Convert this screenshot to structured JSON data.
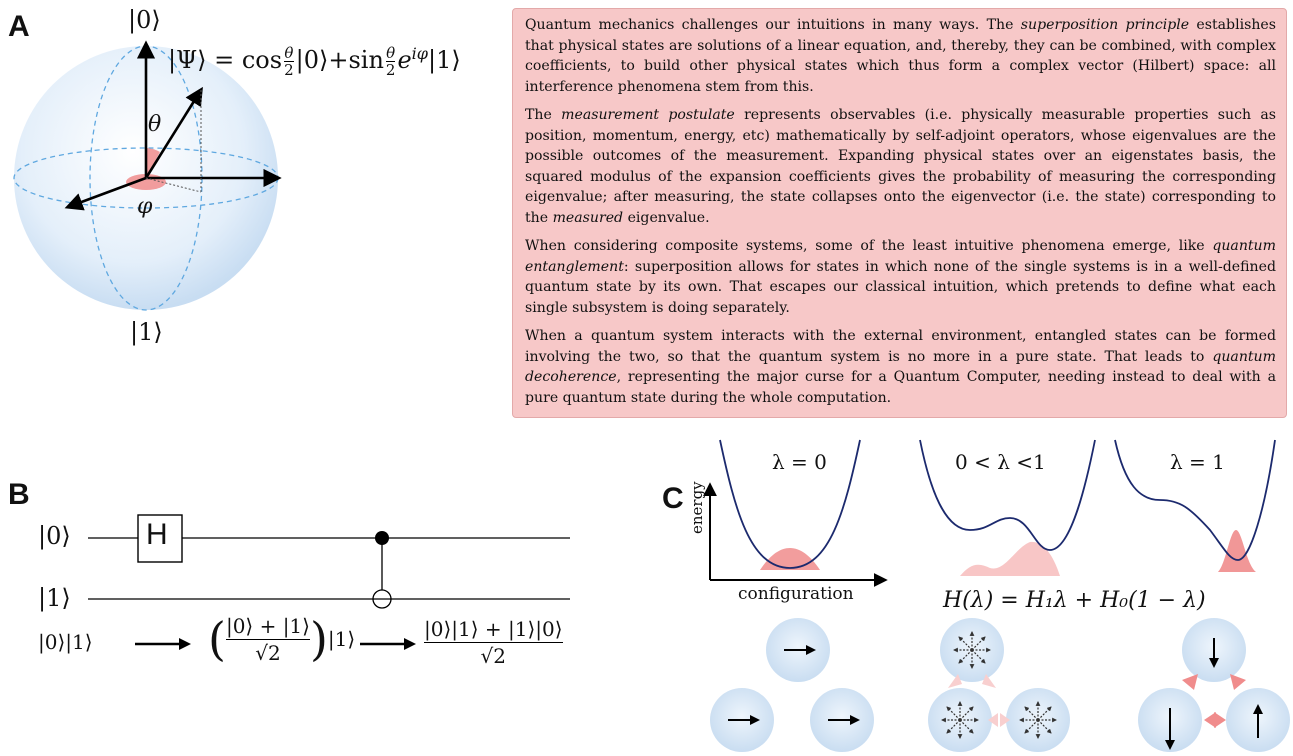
{
  "panel_a": {
    "letter": "A",
    "ket0": "|0⟩",
    "ket1": "|1⟩",
    "state_eq": "|Ψ⟩ = cos θ/2 |0⟩+sin θ/2 e^{iφ} |1⟩",
    "theta": "θ",
    "phi": "φ"
  },
  "textbox": {
    "p1": [
      "Quantum mechanics challenges our intuitions in many ways. The ",
      "superposition principle",
      " establishes that physical states are solutions of a linear equation, and, thereby, they can be combined, with complex coefficients, to build other physical states which thus form a complex vector (Hilbert) space: all interference phenomena stem from this."
    ],
    "p2": [
      "The ",
      "measurement postulate",
      " represents observables (i.e. physically measurable properties such as position, momentum, energy, etc) mathematically by self-adjoint operators, whose eigenvalues are the possible outcomes of the measurement. Expanding physical states over an eigenstates basis, the squared modulus of the expansion coefficients gives the probability of measuring the corresponding eigenvalue; after measuring, the state collapses onto the eigenvector (i.e. the state) corresponding to the ",
      "measured",
      " eigenvalue."
    ],
    "p3": [
      "When considering composite systems, some of the least intuitive phenomena emerge, like ",
      "quantum entanglement",
      ": superposition allows for states in which none of the single systems is in a well-defined quantum state by its own. That escapes our classical intuition, which pretends to define what each single subsystem is doing separately."
    ],
    "p4": [
      "When a quantum system interacts with the external environment, entangled states can be formed involving the two, so that the quantum system is no more in a pure state. That leads to ",
      "quantum decoherence",
      ", representing the major curse for a Quantum Computer, needing instead to deal with a pure quantum state during the whole computation."
    ]
  },
  "panel_b": {
    "letter": "B",
    "ket0": "|0⟩",
    "ket1": "|1⟩",
    "gate": "H",
    "initial": "|0⟩|1⟩",
    "mid_num": "|0⟩ + |1⟩",
    "mid_den": "√2",
    "mid_tail": "|1⟩",
    "final_num": "|0⟩|1⟩ + |1⟩|0⟩",
    "final_den": "√2"
  },
  "panel_c": {
    "letter": "C",
    "lambda_labels": [
      "λ = 0",
      "0 < λ <1",
      "λ = 1"
    ],
    "ylabel": "energy",
    "xlabel": "configuration",
    "hamiltonian": "H(λ) = H₁λ + H₀(1 − λ)"
  },
  "colors": {
    "text_box": "#f7c8c8",
    "accent_pink": "#f08c8c",
    "curve_blue": "#1c2a6e",
    "sphere_blue": "#d9e9f8"
  }
}
